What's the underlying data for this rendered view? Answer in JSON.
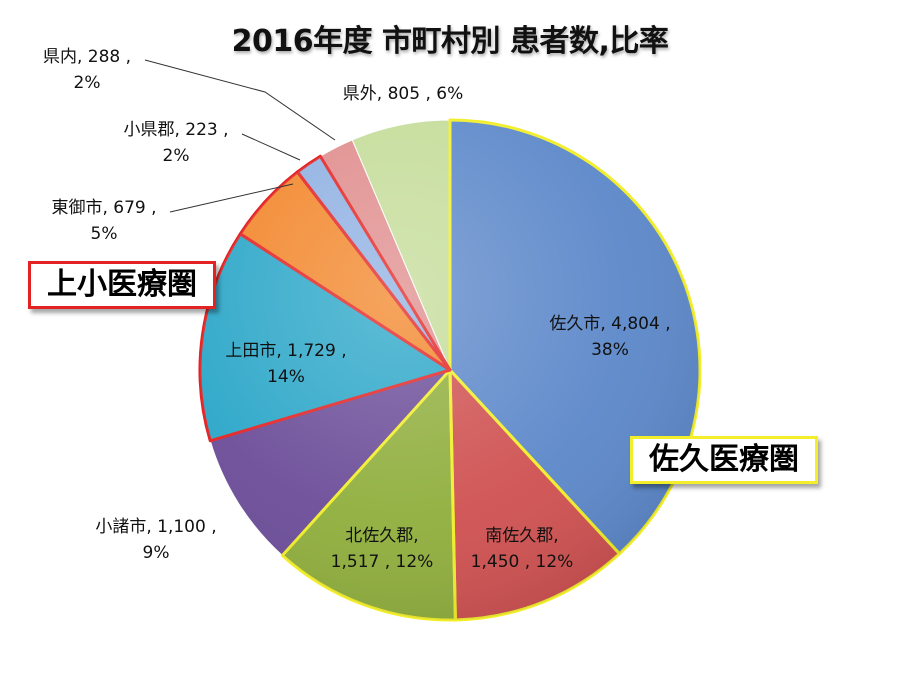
{
  "chart_data": {
    "type": "pie",
    "title": "2016年度 市町村別 患者数,比率",
    "series": [
      {
        "name": "佐久市",
        "value": 4804,
        "value_text": "4,804",
        "percent": "38%",
        "color": "#5b87c9",
        "region": "佐久医療圏"
      },
      {
        "name": "南佐久郡",
        "value": 1450,
        "value_text": "1,450",
        "percent": "12%",
        "color": "#cf5050",
        "region": "佐久医療圏"
      },
      {
        "name": "北佐久郡",
        "value": 1517,
        "value_text": "1,517",
        "percent": "12%",
        "color": "#8fae3c",
        "region": "佐久医療圏"
      },
      {
        "name": "小諸市",
        "value": 1100,
        "value_text": "1,100",
        "percent": "9%",
        "color": "#6b4c98",
        "region": ""
      },
      {
        "name": "上田市",
        "value": 1729,
        "value_text": "1,729",
        "percent": "14%",
        "color": "#2aa6c8",
        "region": "上小医療圏"
      },
      {
        "name": "東御市",
        "value": 679,
        "value_text": "679",
        "percent": "5%",
        "color": "#f2862a",
        "region": "上小医療圏"
      },
      {
        "name": "小県郡",
        "value": 223,
        "value_text": "223",
        "percent": "2%",
        "color": "#8fb0e2",
        "region": "上小医療圏"
      },
      {
        "name": "県内",
        "value": 288,
        "value_text": "288",
        "percent": "2%",
        "color": "#e08c8c",
        "region": ""
      },
      {
        "name": "県外",
        "value": 805,
        "value_text": "805",
        "percent": "6%",
        "color": "#c4dc98",
        "region": ""
      }
    ],
    "highlight_groups": [
      {
        "label": "佐久医療圏",
        "border_color": "#f2ee2a",
        "members": [
          "佐久市",
          "南佐久郡",
          "北佐久郡"
        ]
      },
      {
        "label": "上小医療圏",
        "border_color": "#e32323",
        "members": [
          "上田市",
          "東御市",
          "小県郡"
        ]
      }
    ],
    "legend": "none"
  },
  "labels": {
    "saku_city": {
      "l1": "佐久市, 4,804 ,",
      "l2": "38%"
    },
    "minamisaku": {
      "l1": "南佐久郡,",
      "l2": "1,450 , 12%"
    },
    "kitasaku": {
      "l1": "北佐久郡,",
      "l2": "1,517 , 12%"
    },
    "komoro": {
      "l1": "小諸市, 1,100 ,",
      "l2": "9%"
    },
    "ueda": {
      "l1": "上田市, 1,729 ,",
      "l2": "14%"
    },
    "tomi": {
      "l1": "東御市, 679 ,",
      "l2": "5%"
    },
    "chiisagata": {
      "l1": "小県郡, 223 ,",
      "l2": "2%"
    },
    "kennai": {
      "l1": "県内, 288 ,",
      "l2": "2%"
    },
    "kengai": {
      "l1": "県外, 805 , 6%"
    }
  },
  "regions": {
    "ueda_area": "上小医療圏",
    "saku_area": "佐久医療圏"
  }
}
